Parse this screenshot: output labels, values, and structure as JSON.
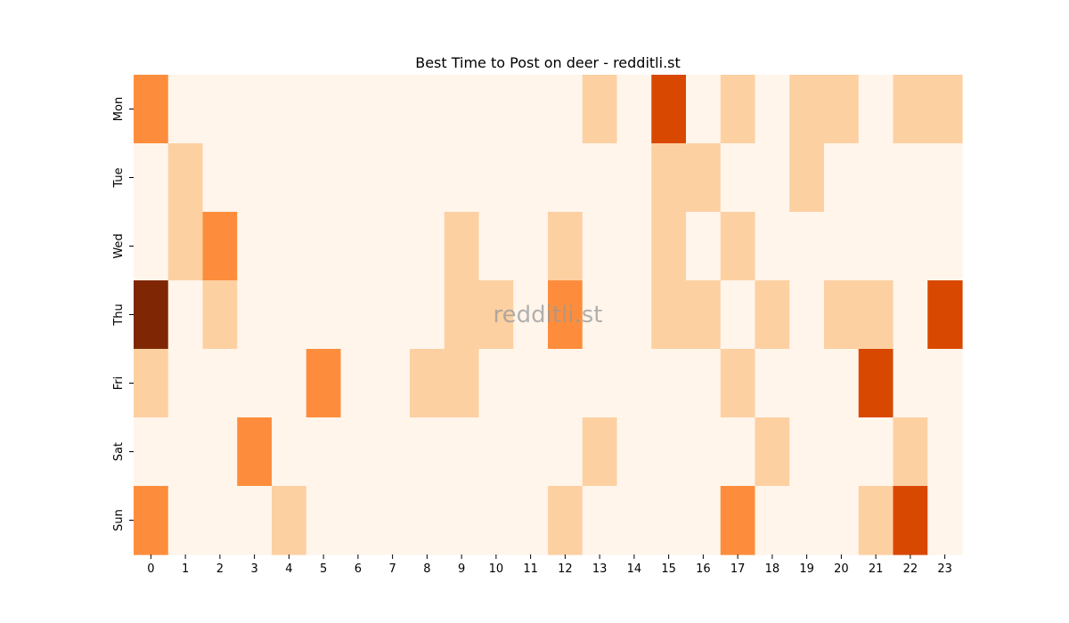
{
  "chart_data": {
    "type": "heatmap",
    "title": "Best Time to Post on deer - redditli.st",
    "watermark": "redditli.st",
    "xlabel": "",
    "ylabel": "",
    "x_categories": [
      "0",
      "1",
      "2",
      "3",
      "4",
      "5",
      "6",
      "7",
      "8",
      "9",
      "10",
      "11",
      "12",
      "13",
      "14",
      "15",
      "16",
      "17",
      "18",
      "19",
      "20",
      "21",
      "22",
      "23"
    ],
    "y_categories": [
      "Mon",
      "Tue",
      "Wed",
      "Thu",
      "Fri",
      "Sat",
      "Sun"
    ],
    "value_range": [
      0,
      4
    ],
    "colormap": [
      "#fff5eb",
      "#fdd0a2",
      "#fd8d3c",
      "#d94801",
      "#7f2704"
    ],
    "values": [
      [
        2,
        0,
        0,
        0,
        0,
        0,
        0,
        0,
        0,
        0,
        0,
        0,
        0,
        1,
        0,
        3,
        0,
        1,
        0,
        1,
        1,
        0,
        1,
        1
      ],
      [
        0,
        1,
        0,
        0,
        0,
        0,
        0,
        0,
        0,
        0,
        0,
        0,
        0,
        0,
        0,
        1,
        1,
        0,
        0,
        1,
        0,
        0,
        0,
        0
      ],
      [
        0,
        1,
        2,
        0,
        0,
        0,
        0,
        0,
        0,
        1,
        0,
        0,
        1,
        0,
        0,
        1,
        0,
        1,
        0,
        0,
        0,
        0,
        0,
        0
      ],
      [
        4,
        0,
        1,
        0,
        0,
        0,
        0,
        0,
        0,
        1,
        1,
        0,
        2,
        0,
        0,
        1,
        1,
        0,
        1,
        0,
        1,
        1,
        0,
        3
      ],
      [
        1,
        0,
        0,
        0,
        0,
        2,
        0,
        0,
        1,
        1,
        0,
        0,
        0,
        0,
        0,
        0,
        0,
        1,
        0,
        0,
        0,
        3,
        0,
        0
      ],
      [
        0,
        0,
        0,
        2,
        0,
        0,
        0,
        0,
        0,
        0,
        0,
        0,
        0,
        1,
        0,
        0,
        0,
        0,
        1,
        0,
        0,
        0,
        1,
        0
      ],
      [
        2,
        0,
        0,
        0,
        1,
        0,
        0,
        0,
        0,
        0,
        0,
        0,
        1,
        0,
        0,
        0,
        0,
        2,
        0,
        0,
        0,
        1,
        3,
        0
      ]
    ]
  }
}
